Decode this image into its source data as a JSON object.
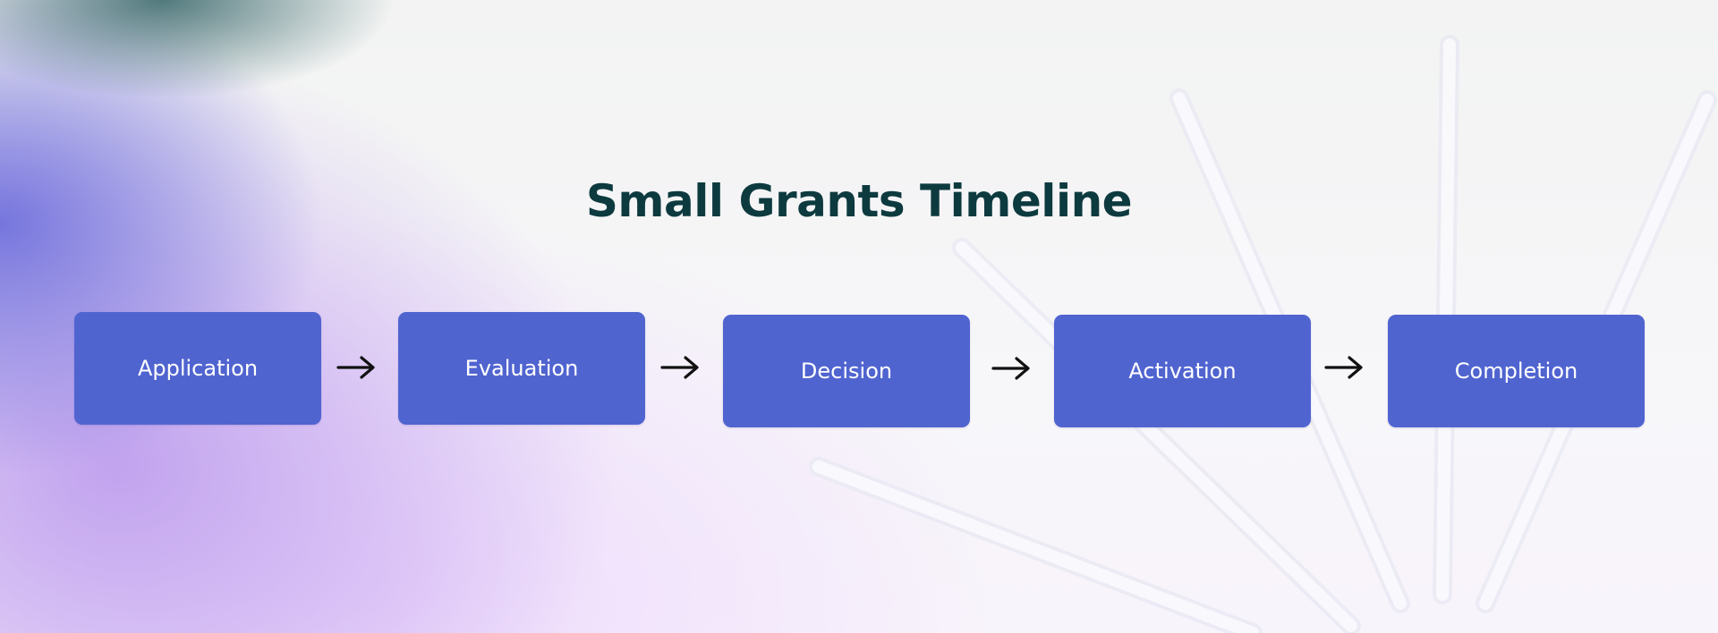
{
  "title": "Small Grants Timeline",
  "steps": [
    {
      "label": "Application"
    },
    {
      "label": "Evaluation"
    },
    {
      "label": "Decision"
    },
    {
      "label": "Activation"
    },
    {
      "label": "Completion"
    }
  ],
  "colors": {
    "box_fill": "#5064d0",
    "box_text": "#ffffff",
    "title": "#0d3a3f",
    "arrow": "#111111"
  },
  "icons": {
    "connector": "arrow-right-icon"
  }
}
